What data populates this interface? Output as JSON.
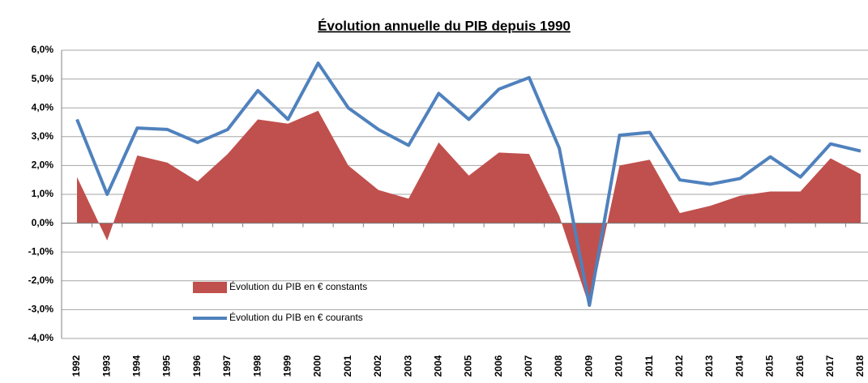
{
  "chart_data": {
    "type": "area-line",
    "title": "Évolution annuelle du PIB depuis 1990",
    "categories": [
      "1992",
      "1993",
      "1994",
      "1995",
      "1996",
      "1997",
      "1998",
      "1999",
      "2000",
      "2001",
      "2002",
      "2003",
      "2004",
      "2005",
      "2006",
      "2007",
      "2008",
      "2009",
      "2010",
      "2011",
      "2012",
      "2013",
      "2014",
      "2015",
      "2016",
      "2017",
      "2018"
    ],
    "series": [
      {
        "name": "Évolution du PIB en € constants",
        "color": "#c0504d",
        "kind": "area",
        "values": [
          1.6,
          -0.6,
          2.35,
          2.1,
          1.45,
          2.4,
          3.6,
          3.45,
          3.9,
          2.0,
          1.15,
          0.85,
          2.8,
          1.65,
          2.45,
          2.4,
          0.25,
          -2.9,
          2.0,
          2.2,
          0.35,
          0.6,
          0.95,
          1.1,
          1.1,
          2.25,
          1.7
        ]
      },
      {
        "name": "Évolution du PIB en € courants",
        "color": "#4f81bd",
        "kind": "line",
        "values": [
          3.6,
          1.0,
          3.3,
          3.25,
          2.8,
          3.25,
          4.6,
          3.6,
          5.55,
          4.0,
          3.25,
          2.7,
          4.5,
          3.6,
          4.65,
          5.05,
          2.6,
          -2.85,
          3.05,
          3.15,
          1.5,
          1.35,
          1.55,
          2.3,
          1.6,
          2.75,
          2.5
        ]
      }
    ],
    "ylim": [
      -4,
      6
    ],
    "yticks": [
      {
        "value": -4,
        "label": "-4,0%"
      },
      {
        "value": -3,
        "label": "-3,0%"
      },
      {
        "value": -2,
        "label": "-2,0%"
      },
      {
        "value": -1,
        "label": "-1,0%"
      },
      {
        "value": 0,
        "label": "0,0%"
      },
      {
        "value": 1,
        "label": "1,0%"
      },
      {
        "value": 2,
        "label": "2,0%"
      },
      {
        "value": 3,
        "label": "3,0%"
      },
      {
        "value": 4,
        "label": "4,0%"
      },
      {
        "value": 5,
        "label": "5,0%"
      },
      {
        "value": 6,
        "label": "6,0%"
      }
    ],
    "grid": true
  }
}
